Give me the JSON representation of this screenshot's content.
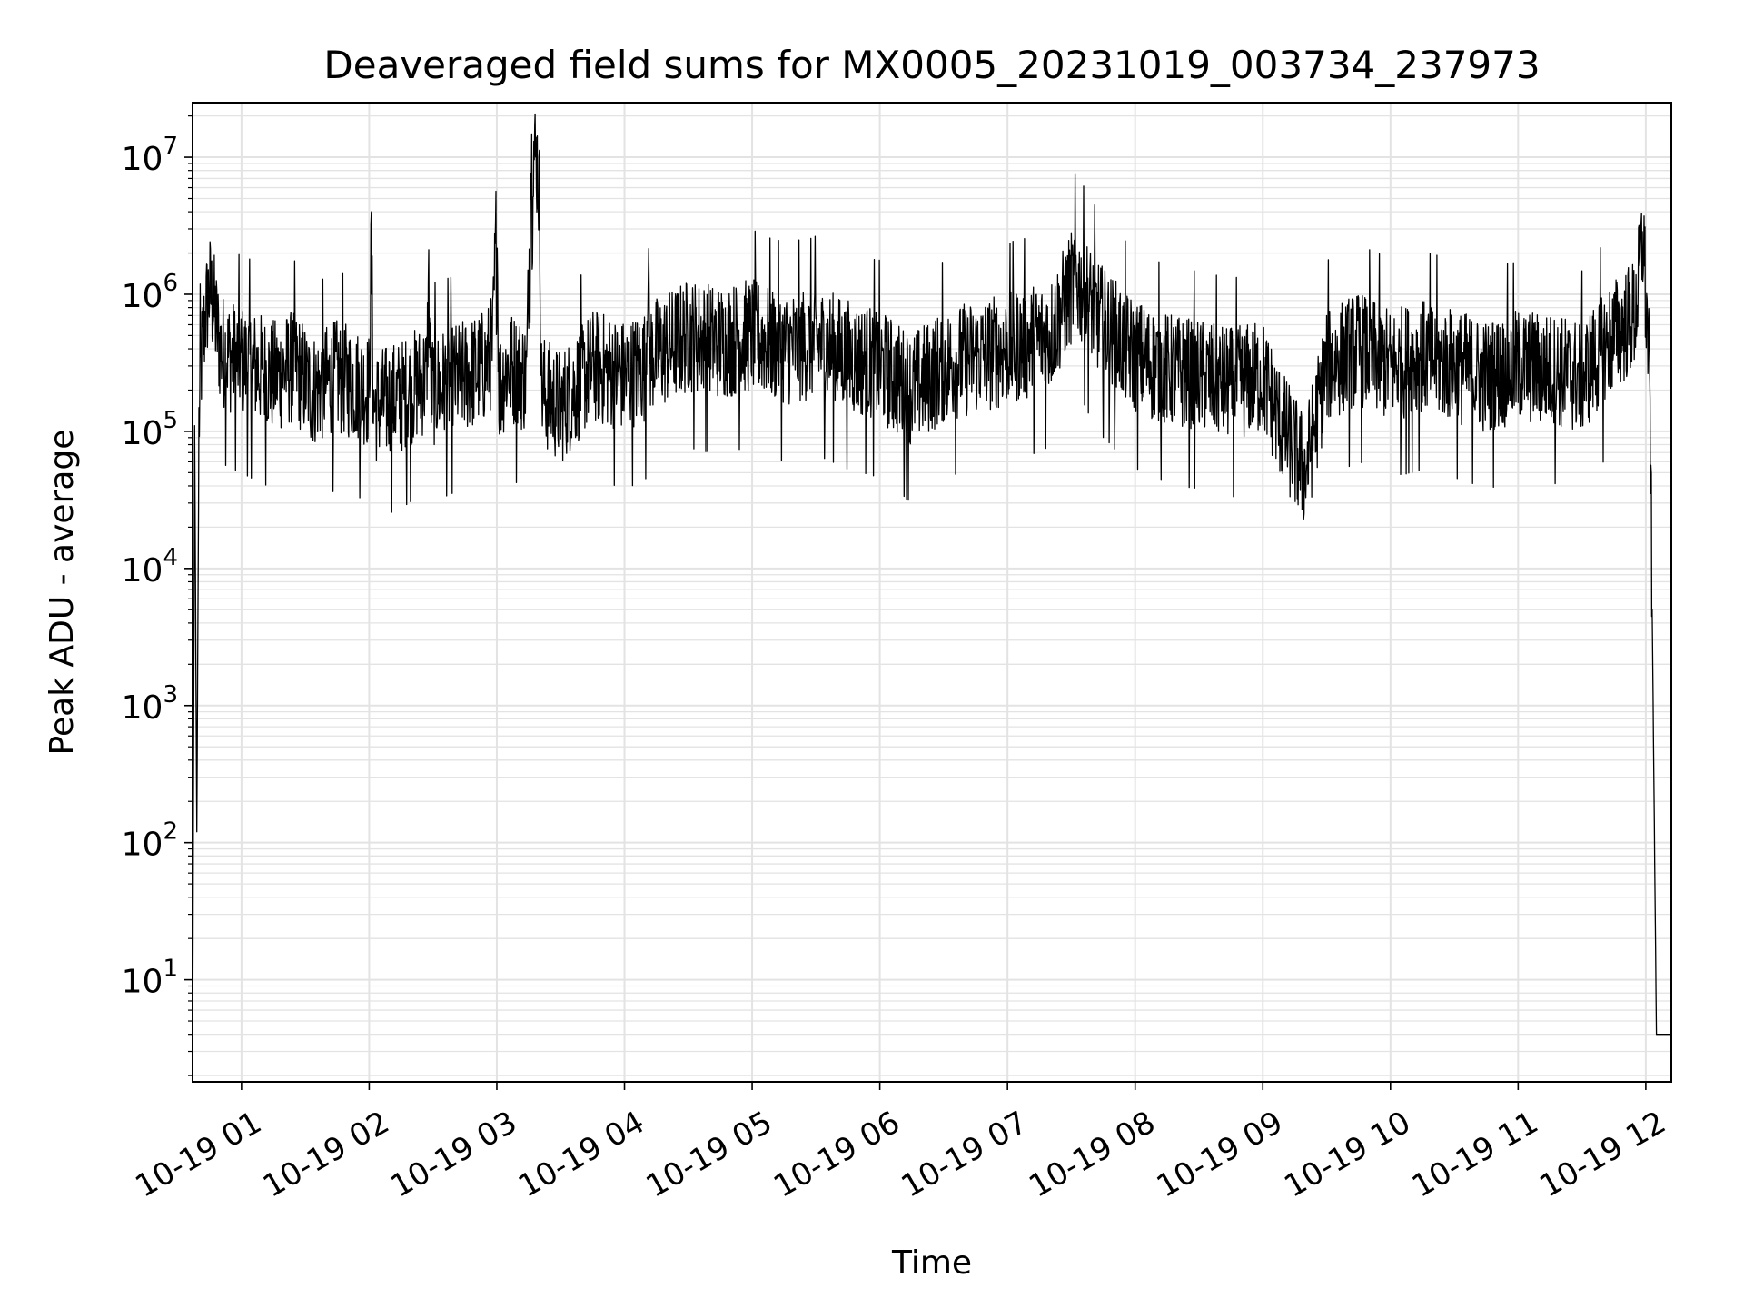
{
  "chart_data": {
    "type": "line",
    "title": "Deaveraged field sums for MX0005_20231019_003734_237973",
    "xlabel": "Time",
    "ylabel": "Peak ADU - average",
    "yscale": "log",
    "xlim": [
      "2023-10-19T00:37",
      "2023-10-19T12:12"
    ],
    "ylim": [
      1.8,
      25000000
    ],
    "x_ticks": [
      "10-19 01",
      "10-19 02",
      "10-19 03",
      "10-19 04",
      "10-19 05",
      "10-19 06",
      "10-19 07",
      "10-19 08",
      "10-19 09",
      "10-19 10",
      "10-19 11",
      "10-19 12"
    ],
    "y_ticks": [
      {
        "base": "10",
        "exp": "1"
      },
      {
        "base": "10",
        "exp": "2"
      },
      {
        "base": "10",
        "exp": "3"
      },
      {
        "base": "10",
        "exp": "4"
      },
      {
        "base": "10",
        "exp": "5"
      },
      {
        "base": "10",
        "exp": "6"
      },
      {
        "base": "10",
        "exp": "7"
      }
    ],
    "grid": true,
    "line_color": "#000000",
    "grid_color": "#e3e3e3",
    "series": [
      {
        "x": [
          "2023-10-19T00:37",
          "2023-10-19T00:38",
          "2023-10-19T00:39",
          "2023-10-19T00:40",
          "2023-10-19T00:41",
          "2023-10-19T00:43",
          "2023-10-19T00:45",
          "2023-10-19T00:47",
          "2023-10-19T00:50",
          "2023-10-19T00:55",
          "2023-10-19T01:05",
          "2023-10-19T01:15",
          "2023-10-19T01:25",
          "2023-10-19T01:33",
          "2023-10-19T01:45",
          "2023-10-19T02:00",
          "2023-10-19T02:01",
          "2023-10-19T02:02",
          "2023-10-19T02:15",
          "2023-10-19T02:27",
          "2023-10-19T02:28",
          "2023-10-19T02:29",
          "2023-10-19T02:45",
          "2023-10-19T02:55",
          "2023-10-19T02:58",
          "2023-10-19T03:00",
          "2023-10-19T03:01",
          "2023-10-19T03:05",
          "2023-10-19T03:14",
          "2023-10-19T03:16",
          "2023-10-19T03:17",
          "2023-10-19T03:19",
          "2023-10-19T03:20",
          "2023-10-19T03:21",
          "2023-10-19T03:24",
          "2023-10-19T03:30",
          "2023-10-19T03:45",
          "2023-10-19T04:00",
          "2023-10-19T04:10",
          "2023-10-19T04:11",
          "2023-10-19T04:12",
          "2023-10-19T04:20",
          "2023-10-19T04:30",
          "2023-10-19T04:45",
          "2023-10-19T05:00",
          "2023-10-19T05:15",
          "2023-10-19T05:30",
          "2023-10-19T05:45",
          "2023-10-19T06:00",
          "2023-10-19T06:15",
          "2023-10-19T06:30",
          "2023-10-19T06:45",
          "2023-10-19T07:00",
          "2023-10-19T07:20",
          "2023-10-19T07:32",
          "2023-10-19T07:45",
          "2023-10-19T08:00",
          "2023-10-19T08:15",
          "2023-10-19T08:30",
          "2023-10-19T08:45",
          "2023-10-19T09:00",
          "2023-10-19T09:10",
          "2023-10-19T09:20",
          "2023-10-19T09:30",
          "2023-10-19T09:45",
          "2023-10-19T10:00",
          "2023-10-19T10:15",
          "2023-10-19T10:30",
          "2023-10-19T10:45",
          "2023-10-19T11:00",
          "2023-10-19T11:15",
          "2023-10-19T11:30",
          "2023-10-19T11:45",
          "2023-10-19T11:55",
          "2023-10-19T11:59",
          "2023-10-19T12:00",
          "2023-10-19T12:01",
          "2023-10-19T12:02",
          "2023-10-19T12:03",
          "2023-10-19T12:05",
          "2023-10-19T12:07",
          "2023-10-19T12:08",
          "2023-10-19T12:12"
        ],
        "y": [
          2,
          110000,
          120,
          110000,
          300000,
          700000,
          1100000,
          800000,
          400000,
          350000,
          300000,
          250000,
          300000,
          200000,
          250000,
          200000,
          2300000,
          150000,
          180000,
          250000,
          1200000,
          200000,
          250000,
          300000,
          400000,
          4200000,
          200000,
          300000,
          250000,
          8000000,
          12000000,
          9000000,
          5000000,
          200000,
          180000,
          150000,
          300000,
          250000,
          300000,
          1600000,
          350000,
          400000,
          500000,
          450000,
          500000,
          400000,
          450000,
          350000,
          300000,
          200000,
          300000,
          350000,
          400000,
          500000,
          1300000,
          600000,
          350000,
          280000,
          250000,
          220000,
          250000,
          100000,
          50000,
          300000,
          400000,
          300000,
          350000,
          300000,
          250000,
          300000,
          280000,
          250000,
          500000,
          700000,
          2800000,
          800000,
          500000,
          150000,
          5000,
          4,
          4,
          4,
          4
        ]
      }
    ]
  }
}
